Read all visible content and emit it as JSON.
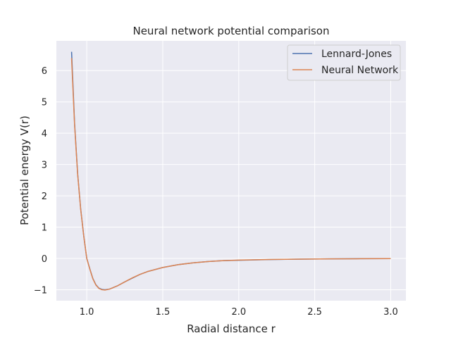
{
  "chart_data": {
    "type": "line",
    "title": "Neural network potential comparison",
    "xlabel": "Radial distance r",
    "ylabel": "Potential energy V(r)",
    "xlim": [
      0.8,
      3.1
    ],
    "ylim": [
      -1.35,
      6.95
    ],
    "xticks": [
      1.0,
      1.5,
      2.0,
      2.5,
      3.0
    ],
    "xtick_labels": [
      "1.0",
      "1.5",
      "2.0",
      "2.5",
      "3.0"
    ],
    "yticks": [
      -1,
      0,
      1,
      2,
      3,
      4,
      5,
      6
    ],
    "ytick_labels": [
      "−1",
      "0",
      "1",
      "2",
      "3",
      "4",
      "5",
      "6"
    ],
    "grid": true,
    "legend_position": "top-right",
    "background_color": "#eaeaf2",
    "series": [
      {
        "name": "Lennard-Jones",
        "color": "#4c72b0",
        "x": [
          0.9,
          0.92,
          0.94,
          0.96,
          0.98,
          1.0,
          1.02,
          1.04,
          1.06,
          1.08,
          1.1,
          1.12,
          1.15,
          1.2,
          1.25,
          1.3,
          1.35,
          1.4,
          1.5,
          1.6,
          1.7,
          1.8,
          1.9,
          2.0,
          2.2,
          2.4,
          2.6,
          2.8,
          3.0
        ],
        "y": [
          6.6,
          4.3,
          2.71,
          1.58,
          0.72,
          0.0,
          -0.33,
          -0.64,
          -0.84,
          -0.95,
          -0.99,
          -1.0,
          -0.98,
          -0.88,
          -0.75,
          -0.63,
          -0.51,
          -0.42,
          -0.29,
          -0.2,
          -0.14,
          -0.1,
          -0.07,
          -0.06,
          -0.036,
          -0.023,
          -0.015,
          -0.009,
          -0.005
        ]
      },
      {
        "name": "Neural Network",
        "color": "#dd8452",
        "x": [
          0.9,
          0.92,
          0.94,
          0.96,
          0.98,
          1.0,
          1.02,
          1.04,
          1.06,
          1.08,
          1.1,
          1.12,
          1.15,
          1.2,
          1.25,
          1.3,
          1.35,
          1.4,
          1.5,
          1.6,
          1.7,
          1.8,
          1.9,
          2.0,
          2.2,
          2.4,
          2.6,
          2.8,
          3.0
        ],
        "y": [
          6.4,
          4.25,
          2.69,
          1.57,
          0.72,
          0.0,
          -0.34,
          -0.65,
          -0.85,
          -0.96,
          -1.0,
          -1.01,
          -0.98,
          -0.88,
          -0.75,
          -0.62,
          -0.51,
          -0.42,
          -0.29,
          -0.2,
          -0.14,
          -0.1,
          -0.07,
          -0.055,
          -0.035,
          -0.023,
          -0.015,
          -0.01,
          -0.005
        ]
      }
    ]
  }
}
